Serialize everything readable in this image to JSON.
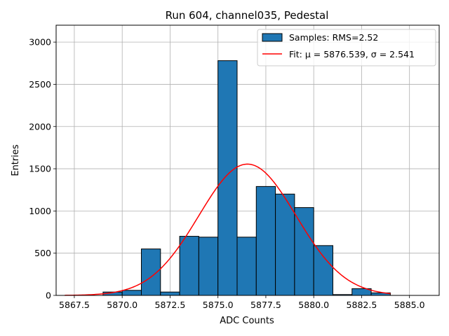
{
  "chart_data": {
    "type": "histogram",
    "title": "Run 604, channel035, Pedestal",
    "xlabel": "ADC Counts",
    "ylabel": "Entries",
    "xlim": [
      5866.55,
      5886.55
    ],
    "ylim": [
      0,
      3200
    ],
    "xticks": [
      5867.5,
      5870.0,
      5872.5,
      5875.0,
      5877.5,
      5880.0,
      5882.5,
      5885.0
    ],
    "xtick_labels": [
      "5867.5",
      "5870.0",
      "5872.5",
      "5875.0",
      "5877.5",
      "5880.0",
      "5882.5",
      "5885.0"
    ],
    "yticks": [
      0,
      500,
      1000,
      1500,
      2000,
      2500,
      3000
    ],
    "ytick_labels": [
      "0",
      "500",
      "1000",
      "1500",
      "2000",
      "2500",
      "3000"
    ],
    "grid": true,
    "legend_position": "top-right",
    "bins": [
      {
        "x0": 5867.0,
        "x1": 5868.0,
        "count": 0
      },
      {
        "x0": 5868.0,
        "x1": 5869.0,
        "count": 0
      },
      {
        "x0": 5869.0,
        "x1": 5870.0,
        "count": 40
      },
      {
        "x0": 5870.0,
        "x1": 5871.0,
        "count": 60
      },
      {
        "x0": 5871.0,
        "x1": 5872.0,
        "count": 550
      },
      {
        "x0": 5872.0,
        "x1": 5873.0,
        "count": 40
      },
      {
        "x0": 5873.0,
        "x1": 5874.0,
        "count": 700
      },
      {
        "x0": 5874.0,
        "x1": 5875.0,
        "count": 690
      },
      {
        "x0": 5875.0,
        "x1": 5876.0,
        "count": 2780
      },
      {
        "x0": 5876.0,
        "x1": 5877.0,
        "count": 690
      },
      {
        "x0": 5877.0,
        "x1": 5878.0,
        "count": 1290
      },
      {
        "x0": 5878.0,
        "x1": 5879.0,
        "count": 1200
      },
      {
        "x0": 5879.0,
        "x1": 5880.0,
        "count": 1040
      },
      {
        "x0": 5880.0,
        "x1": 5881.0,
        "count": 590
      },
      {
        "x0": 5881.0,
        "x1": 5882.0,
        "count": 10
      },
      {
        "x0": 5882.0,
        "x1": 5883.0,
        "count": 80
      },
      {
        "x0": 5883.0,
        "x1": 5884.0,
        "count": 30
      }
    ],
    "fit": {
      "mu": 5876.539,
      "sigma": 2.541,
      "amplitude": 1555,
      "x_range": [
        5867.0,
        5884.0
      ]
    },
    "series": [
      {
        "name": "Samples: RMS=2.52",
        "kind": "histogram",
        "color": "#1f77b4",
        "edgecolor": "#000000"
      },
      {
        "name": "Fit: μ = 5876.539, σ = 2.541",
        "kind": "line",
        "color": "#ff0000"
      }
    ]
  }
}
